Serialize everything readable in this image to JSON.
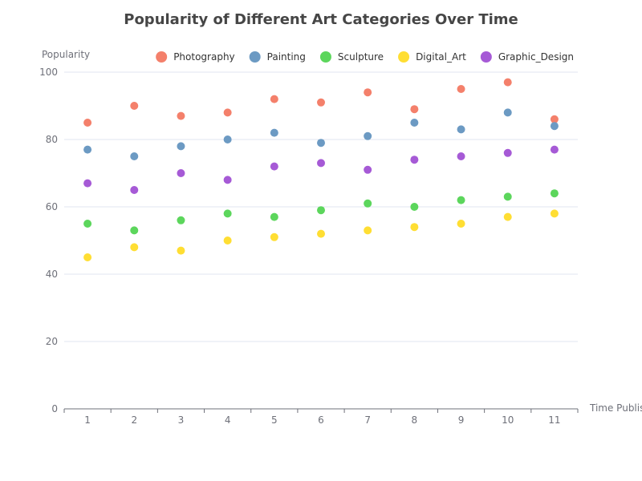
{
  "chart_data": {
    "type": "scatter",
    "title": "Popularity of Different Art Categories Over Time",
    "xlabel": "Time Published",
    "ylabel": "Popularity",
    "x": [
      1,
      2,
      3,
      4,
      5,
      6,
      7,
      8,
      9,
      10,
      11
    ],
    "xlim": [
      0.5,
      11.5
    ],
    "ylim": [
      0,
      100
    ],
    "yticks": [
      0,
      20,
      40,
      60,
      80,
      100
    ],
    "grid": "horizontal",
    "legend_position": "top-right",
    "series": [
      {
        "name": "Photography",
        "color": "#f4806b",
        "values": [
          85,
          90,
          87,
          88,
          92,
          91,
          94,
          89,
          95,
          97,
          86
        ]
      },
      {
        "name": "Painting",
        "color": "#6c9ac3",
        "values": [
          77,
          75,
          78,
          80,
          82,
          79,
          81,
          85,
          83,
          88,
          84
        ]
      },
      {
        "name": "Sculpture",
        "color": "#5cd65c",
        "values": [
          55,
          53,
          56,
          58,
          57,
          59,
          61,
          60,
          62,
          63,
          64
        ]
      },
      {
        "name": "Digital_Art",
        "color": "#ffde33",
        "values": [
          45,
          48,
          47,
          50,
          51,
          52,
          53,
          54,
          55,
          57,
          58
        ]
      },
      {
        "name": "Graphic_Design",
        "color": "#a65ad6",
        "values": [
          67,
          65,
          70,
          68,
          72,
          73,
          71,
          74,
          75,
          76,
          77
        ]
      }
    ]
  }
}
